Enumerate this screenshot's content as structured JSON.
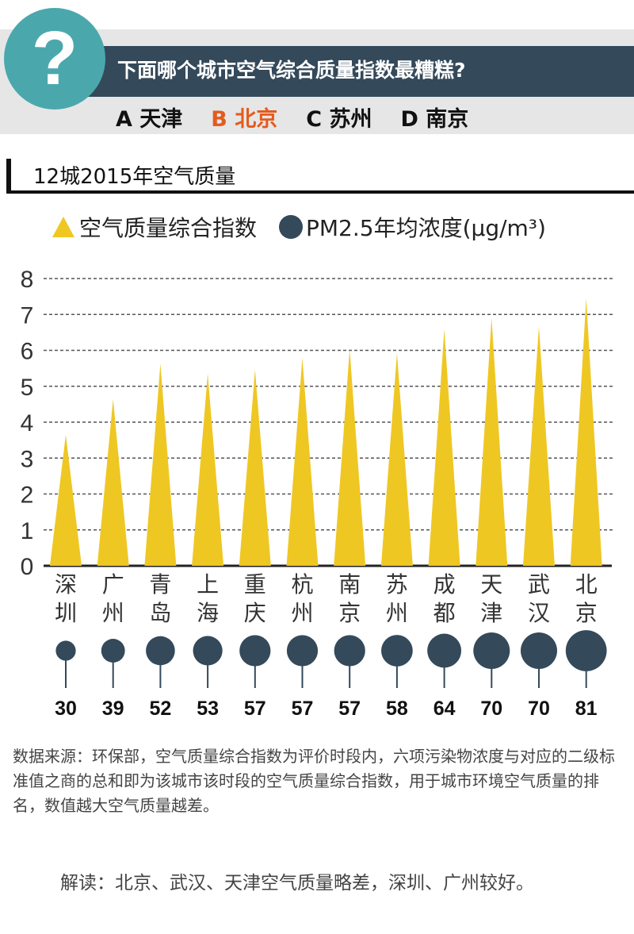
{
  "question": {
    "icon": "question-mark-icon",
    "symbol": "?",
    "text": "下面哪个城市空气综合质量指数最糟糕?",
    "options": [
      {
        "label": "A 天津",
        "selected": false
      },
      {
        "label": "B 北京",
        "selected": true
      },
      {
        "label": "C 苏州",
        "selected": false
      },
      {
        "label": "D 南京",
        "selected": false
      }
    ]
  },
  "section_title": "12城2015年空气质量",
  "legend": {
    "triangle": "空气质量综合指数",
    "circle": "PM2.5年均浓度(μg/m³)"
  },
  "colors": {
    "triangle": "#efc723",
    "circle": "#34495a",
    "selected": "#e35b1e"
  },
  "chart_data": {
    "type": "bar",
    "title": "12城2015年空气质量",
    "categories": [
      "深圳",
      "广州",
      "青岛",
      "上海",
      "重庆",
      "杭州",
      "南京",
      "苏州",
      "成都",
      "天津",
      "武汉",
      "北京"
    ],
    "series": [
      {
        "name": "空气质量综合指数",
        "values": [
          3.65,
          4.64,
          5.63,
          5.35,
          5.46,
          5.79,
          6.03,
          5.92,
          6.59,
          6.9,
          6.67,
          7.45
        ]
      },
      {
        "name": "PM2.5年均浓度(μg/m³)",
        "values": [
          30,
          39,
          52,
          53,
          57,
          57,
          57,
          58,
          64,
          70,
          70,
          81
        ]
      }
    ],
    "ylim": [
      0,
      8
    ],
    "yticks": [
      "0",
      "1",
      "2",
      "3",
      "4",
      "5",
      "6",
      "7",
      "8"
    ],
    "grid": true,
    "legend": "top"
  },
  "note": "数据来源：环保部，空气质量综合指数为评价时段内，六项污染物浓度与对应的二级标准值之商的总和即为该城市该时段的空气质量综合指数，用于城市环境空气质量的排名，数值越大空气质量越差。",
  "interpretation": "解读：北京、武汉、天津空气质量略差，深圳、广州较好。"
}
